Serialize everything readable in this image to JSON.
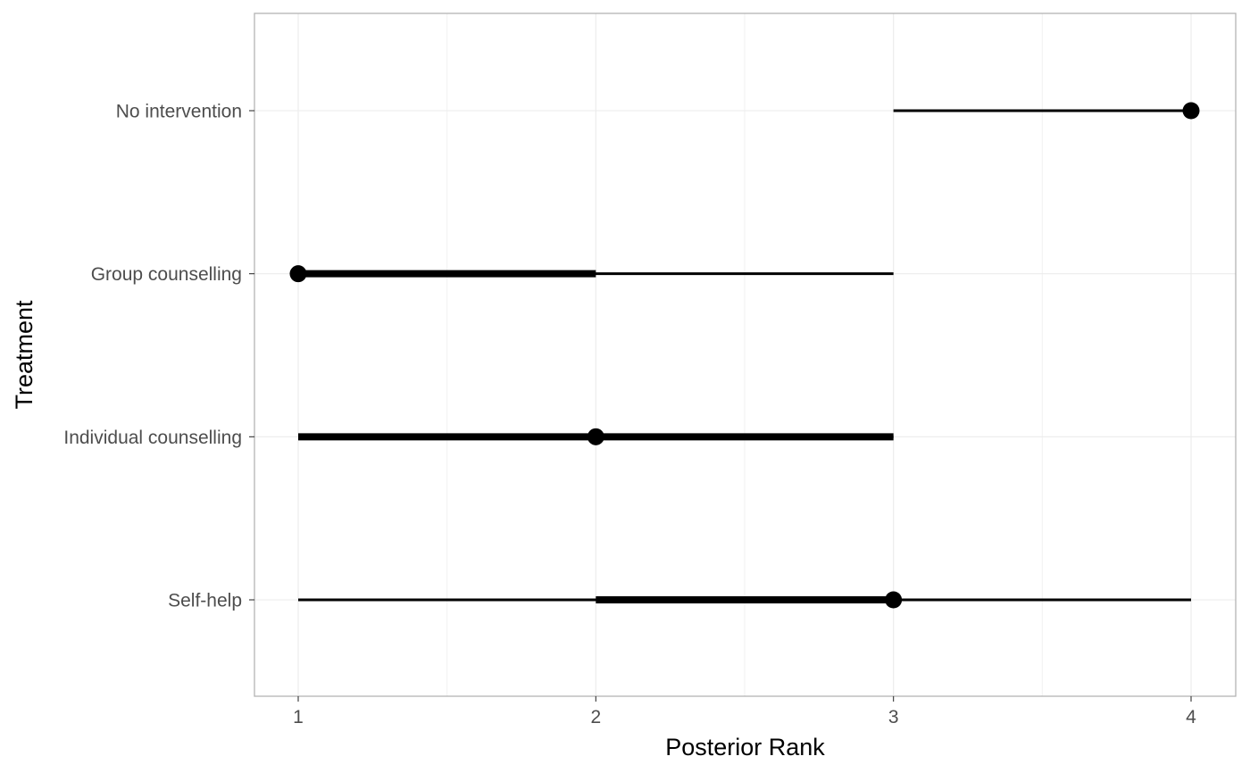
{
  "chart_data": {
    "type": "interval",
    "xlabel": "Posterior Rank",
    "ylabel": "Treatment",
    "xlim": [
      0.85,
      4.15
    ],
    "x_ticks": [
      1,
      2,
      3,
      4
    ],
    "grid": true,
    "categories": [
      "Self-help",
      "Individual counselling",
      "Group counselling",
      "No intervention"
    ],
    "series": [
      {
        "values": [
          {
            "treatment": "Self-help",
            "median": 3,
            "inner": [
              2,
              3
            ],
            "outer": [
              1,
              4
            ]
          },
          {
            "treatment": "Individual counselling",
            "median": 2,
            "inner": [
              1,
              3
            ],
            "outer": [
              1,
              3
            ]
          },
          {
            "treatment": "Group counselling",
            "median": 1,
            "inner": [
              1,
              2
            ],
            "outer": [
              1,
              3
            ]
          },
          {
            "treatment": "No intervention",
            "median": 4,
            "inner": [
              4,
              4
            ],
            "outer": [
              3,
              4
            ]
          }
        ]
      }
    ],
    "colors": {
      "mark": "#000000",
      "grid": "#ebebeb",
      "border": "#b3b3b3",
      "tick_label": "#4d4d4d"
    }
  }
}
